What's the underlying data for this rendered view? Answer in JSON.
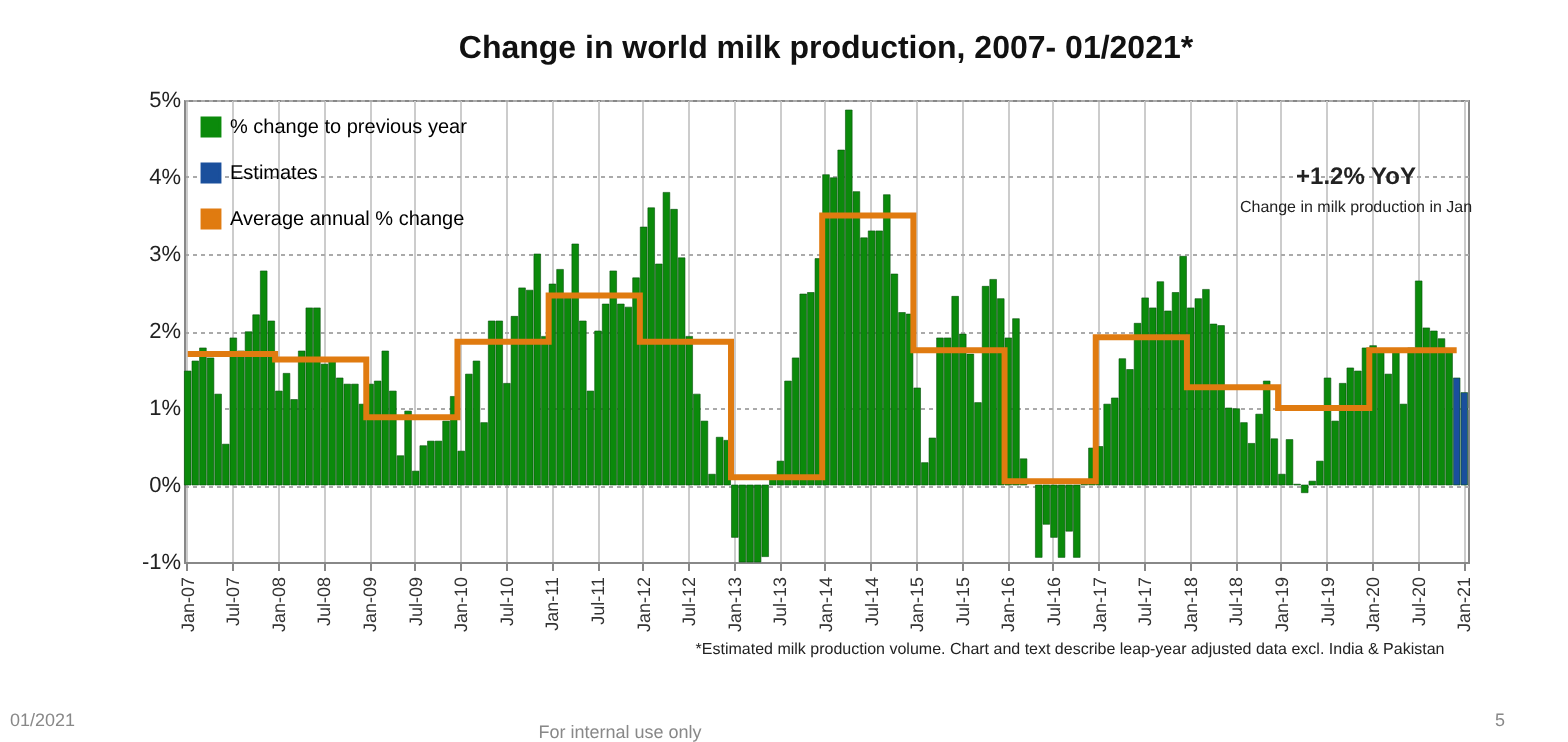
{
  "chart_data": {
    "type": "bar",
    "title": "Change in world milk production, 2007- 01/2021*",
    "categories": [
      "Jan-07",
      null,
      null,
      null,
      null,
      null,
      "Jul-07",
      null,
      null,
      null,
      null,
      null,
      "Jan-08",
      null,
      null,
      null,
      null,
      null,
      "Jul-08",
      null,
      null,
      null,
      null,
      null,
      "Jan-09",
      null,
      null,
      null,
      null,
      null,
      "Jul-09",
      null,
      null,
      null,
      null,
      null,
      "Jan-10",
      null,
      null,
      null,
      null,
      null,
      "Jul-10",
      null,
      null,
      null,
      null,
      null,
      "Jan-11",
      null,
      null,
      null,
      null,
      null,
      "Jul-11",
      null,
      null,
      null,
      null,
      null,
      "Jan-12",
      null,
      null,
      null,
      null,
      null,
      "Jul-12",
      null,
      null,
      null,
      null,
      null,
      "Jan-13",
      null,
      null,
      null,
      null,
      null,
      "Jul-13",
      null,
      null,
      null,
      null,
      null,
      "Jan-14",
      null,
      null,
      null,
      null,
      null,
      "Jul-14",
      null,
      null,
      null,
      null,
      null,
      "Jan-15",
      null,
      null,
      null,
      null,
      null,
      "Jul-15",
      null,
      null,
      null,
      null,
      null,
      "Jan-16",
      null,
      null,
      null,
      null,
      null,
      "Jul-16",
      null,
      null,
      null,
      null,
      null,
      "Jan-17",
      null,
      null,
      null,
      null,
      null,
      "Jul-17",
      null,
      null,
      null,
      null,
      null,
      "Jan-18",
      null,
      null,
      null,
      null,
      null,
      "Jul-18",
      null,
      null,
      null,
      null,
      null,
      "Jan-19",
      null,
      null,
      null,
      null,
      null,
      "Jul-19",
      null,
      null,
      null,
      null,
      null,
      "Jan-20",
      null,
      null,
      null,
      null,
      null,
      "Jul-20",
      null,
      null,
      null,
      null,
      null,
      "Jan-21"
    ],
    "series": [
      {
        "name": "% change to previous year",
        "color": "#0b8a0b",
        "values": [
          1.48,
          1.61,
          1.78,
          1.65,
          1.18,
          0.53,
          1.91,
          1.74,
          1.99,
          2.21,
          2.78,
          2.13,
          1.22,
          1.45,
          1.11,
          1.74,
          2.3,
          2.3,
          1.57,
          1.61,
          1.39,
          1.31,
          1.31,
          1.05,
          1.31,
          1.35,
          1.74,
          1.22,
          0.38,
          0.96,
          0.18,
          0.51,
          0.57,
          0.57,
          0.83,
          1.15,
          0.44,
          1.44,
          1.61,
          0.81,
          2.13,
          2.13,
          1.32,
          2.19,
          2.56,
          2.53,
          3.0,
          1.93,
          2.61,
          2.8,
          2.48,
          3.13,
          2.13,
          1.22,
          2.0,
          2.35,
          2.78,
          2.35,
          2.31,
          2.69,
          3.35,
          3.6,
          2.87,
          3.8,
          3.58,
          2.95,
          1.93,
          1.18,
          0.83,
          0.14,
          0.62,
          0.58,
          -0.68,
          -1,
          -1,
          -1,
          -0.93,
          0.1,
          0.31,
          1.35,
          1.65,
          2.48,
          2.5,
          2.94,
          4.03,
          3.99,
          4.35,
          4.87,
          3.81,
          3.21,
          3.3,
          3.3,
          3.77,
          2.74,
          2.24,
          2.22,
          1.26,
          0.29,
          0.61,
          1.91,
          1.91,
          2.45,
          1.96,
          1.7,
          1.07,
          2.58,
          2.67,
          2.42,
          1.91,
          2.16,
          0.34,
          null,
          -0.94,
          -0.51,
          -0.68,
          -0.94,
          -0.6,
          -0.94,
          0.01,
          0.48,
          0.5,
          1.05,
          1.13,
          1.64,
          1.5,
          2.1,
          2.43,
          2.3,
          2.64,
          2.26,
          2.5,
          2.97,
          2.3,
          2.42,
          2.54,
          2.09,
          2.07,
          1.0,
          0.99,
          0.81,
          0.54,
          0.92,
          1.35,
          0.6,
          0.14,
          0.59,
          0.01,
          -0.1,
          0.05,
          0.31,
          1.39,
          0.83,
          1.32,
          1.52,
          1.48,
          1.78,
          1.81,
          1.74,
          1.44,
          1.74,
          1.05,
          1.78,
          2.65,
          2.04,
          2.0,
          1.9,
          1.74,
          null,
          null
        ]
      },
      {
        "name": "Estimates",
        "color": "#1a4f9c",
        "values": [
          null,
          null,
          null,
          null,
          null,
          null,
          null,
          null,
          null,
          null,
          null,
          null,
          null,
          null,
          null,
          null,
          null,
          null,
          null,
          null,
          null,
          null,
          null,
          null,
          null,
          null,
          null,
          null,
          null,
          null,
          null,
          null,
          null,
          null,
          null,
          null,
          null,
          null,
          null,
          null,
          null,
          null,
          null,
          null,
          null,
          null,
          null,
          null,
          null,
          null,
          null,
          null,
          null,
          null,
          null,
          null,
          null,
          null,
          null,
          null,
          null,
          null,
          null,
          null,
          null,
          null,
          null,
          null,
          null,
          null,
          null,
          null,
          null,
          null,
          null,
          null,
          null,
          null,
          null,
          null,
          null,
          null,
          null,
          null,
          null,
          null,
          null,
          null,
          null,
          null,
          null,
          null,
          null,
          null,
          null,
          null,
          null,
          null,
          null,
          null,
          null,
          null,
          null,
          null,
          null,
          null,
          null,
          null,
          null,
          null,
          null,
          null,
          null,
          null,
          null,
          null,
          null,
          null,
          null,
          null,
          null,
          null,
          null,
          null,
          null,
          null,
          null,
          null,
          null,
          null,
          null,
          null,
          null,
          null,
          null,
          null,
          null,
          null,
          null,
          null,
          null,
          null,
          null,
          null,
          null,
          null,
          null,
          null,
          null,
          null,
          null,
          null,
          null,
          null,
          null,
          null,
          null,
          null,
          null,
          null,
          null,
          null,
          null,
          null,
          null,
          null,
          null,
          1.39,
          1.2
        ]
      },
      {
        "name": "Average annual % change",
        "color": "#e07b10",
        "type": "step",
        "values": [
          1.7,
          1.7,
          1.7,
          1.7,
          1.7,
          1.7,
          1.7,
          1.7,
          1.7,
          1.7,
          1.7,
          1.7,
          1.63,
          1.63,
          1.63,
          1.63,
          1.63,
          1.63,
          1.63,
          1.63,
          1.63,
          1.63,
          1.63,
          1.63,
          0.88,
          0.88,
          0.88,
          0.88,
          0.88,
          0.88,
          0.88,
          0.88,
          0.88,
          0.88,
          0.88,
          0.88,
          1.86,
          1.86,
          1.86,
          1.86,
          1.86,
          1.86,
          1.86,
          1.86,
          1.86,
          1.86,
          1.86,
          1.86,
          2.46,
          2.46,
          2.46,
          2.46,
          2.46,
          2.46,
          2.46,
          2.46,
          2.46,
          2.46,
          2.46,
          2.46,
          1.86,
          1.86,
          1.86,
          1.86,
          1.86,
          1.86,
          1.86,
          1.86,
          1.86,
          1.86,
          1.86,
          1.86,
          0.1,
          0.1,
          0.1,
          0.1,
          0.1,
          0.1,
          0.1,
          0.1,
          0.1,
          0.1,
          0.1,
          0.1,
          3.5,
          3.5,
          3.5,
          3.5,
          3.5,
          3.5,
          3.5,
          3.5,
          3.5,
          3.5,
          3.5,
          3.5,
          1.75,
          1.75,
          1.75,
          1.75,
          1.75,
          1.75,
          1.75,
          1.75,
          1.75,
          1.75,
          1.75,
          1.75,
          0.05,
          0.05,
          0.05,
          0.05,
          0.05,
          0.05,
          0.05,
          0.05,
          0.05,
          0.05,
          0.05,
          0.05,
          1.92,
          1.92,
          1.92,
          1.92,
          1.92,
          1.92,
          1.92,
          1.92,
          1.92,
          1.92,
          1.92,
          1.92,
          1.27,
          1.27,
          1.27,
          1.27,
          1.27,
          1.27,
          1.27,
          1.27,
          1.27,
          1.27,
          1.27,
          1.27,
          1.0,
          1.0,
          1.0,
          1.0,
          1.0,
          1.0,
          1.0,
          1.0,
          1.0,
          1.0,
          1.0,
          1.0,
          1.75,
          1.75,
          1.75,
          1.75,
          1.75,
          1.75,
          1.75,
          1.75,
          1.75,
          1.75,
          1.75,
          1.75,
          null
        ]
      }
    ],
    "ylim": [
      -1,
      5
    ],
    "yticks": [
      {
        "value": -1,
        "label": "-1%"
      },
      {
        "value": 0,
        "label": "0%"
      },
      {
        "value": 1,
        "label": "1%"
      },
      {
        "value": 2,
        "label": "2%"
      },
      {
        "value": 3,
        "label": "3%"
      },
      {
        "value": 4,
        "label": "4%"
      },
      {
        "value": 5,
        "label": "5%"
      }
    ],
    "grid": true,
    "legend": "top left",
    "annotations": [
      "+1.2% YoY",
      "Change in milk production in Jan",
      "*Estimated milk production volume. Chart and text describe leap-year adjusted data excl. India & Pakistan",
      "For internal use only",
      "01/2021",
      "5"
    ]
  }
}
